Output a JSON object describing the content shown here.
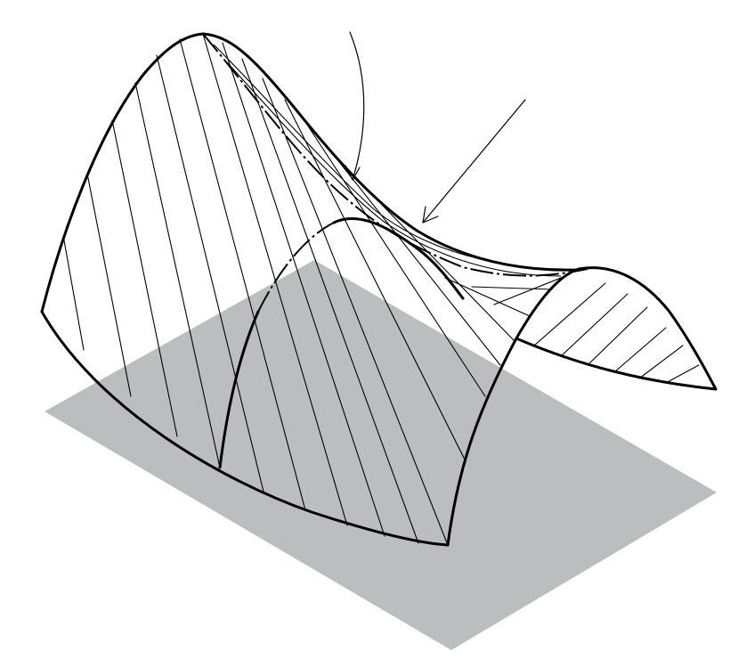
{
  "figure": {
    "base_plane_color": "#bcbdbf",
    "outline_color": "#000000",
    "background_color": "#ffffff",
    "icons": [
      "hyperbolic-paraboloid",
      "base-plane",
      "ruling-line",
      "pointer-arrow"
    ]
  }
}
